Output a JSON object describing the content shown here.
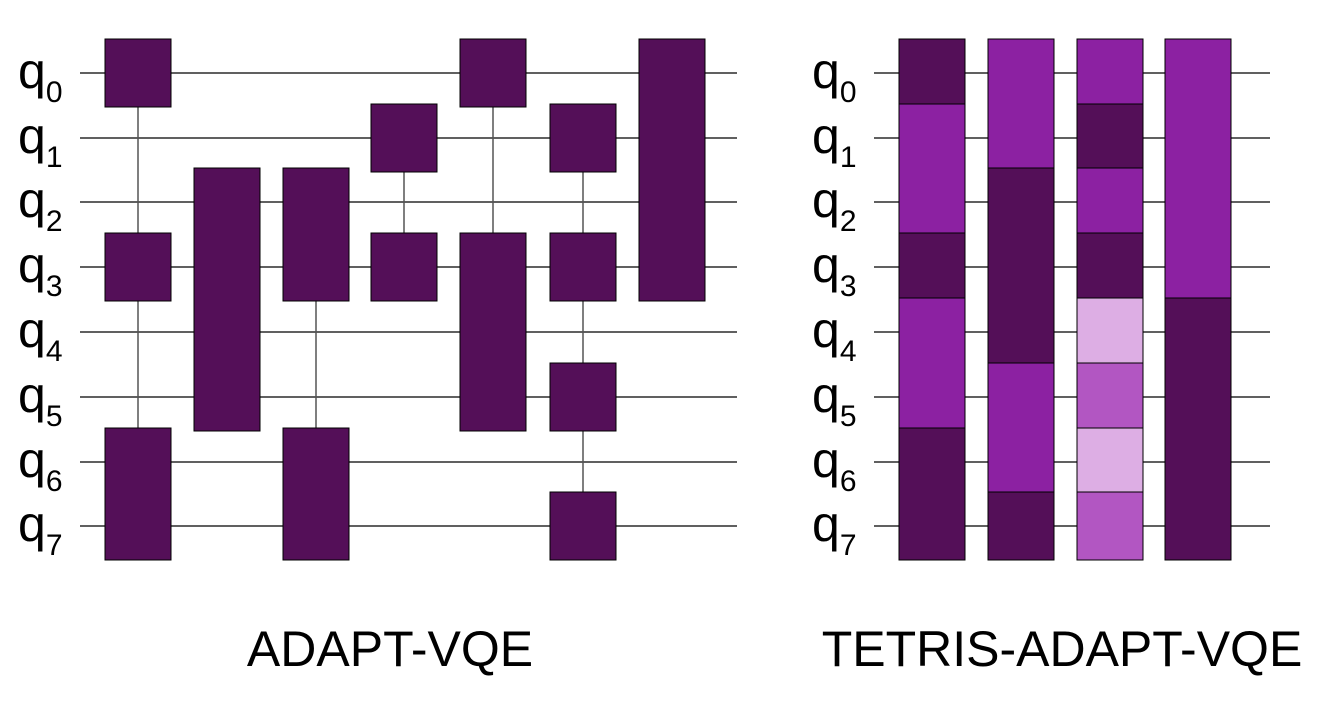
{
  "qubits": [
    {
      "name": "q",
      "index": "0"
    },
    {
      "name": "q",
      "index": "1"
    },
    {
      "name": "q",
      "index": "2"
    },
    {
      "name": "q",
      "index": "3"
    },
    {
      "name": "q",
      "index": "4"
    },
    {
      "name": "q",
      "index": "5"
    },
    {
      "name": "q",
      "index": "6"
    },
    {
      "name": "q",
      "index": "7"
    }
  ],
  "colors": {
    "dark": "#540F58",
    "medium": "#8C21A2",
    "mid_light": "#B256C2",
    "light": "#DDAEE4",
    "wire": "#000000",
    "connector": "#555555"
  },
  "circuits": [
    {
      "title": "ADAPT-VQE",
      "gates": [
        {
          "column": 1,
          "from": 0,
          "to": 0,
          "color": "dark"
        },
        {
          "column": 1,
          "from": 3,
          "to": 3,
          "color": "dark"
        },
        {
          "column": 1,
          "from": 6,
          "to": 7,
          "color": "dark"
        },
        {
          "column": 2,
          "from": 2,
          "to": 5,
          "color": "dark"
        },
        {
          "column": 3,
          "from": 2,
          "to": 3,
          "color": "dark"
        },
        {
          "column": 3,
          "from": 6,
          "to": 7,
          "color": "dark"
        },
        {
          "column": 4,
          "from": 1,
          "to": 1,
          "color": "dark"
        },
        {
          "column": 4,
          "from": 3,
          "to": 3,
          "color": "dark"
        },
        {
          "column": 5,
          "from": 0,
          "to": 0,
          "color": "dark"
        },
        {
          "column": 5,
          "from": 3,
          "to": 5,
          "color": "dark"
        },
        {
          "column": 6,
          "from": 1,
          "to": 1,
          "color": "dark"
        },
        {
          "column": 6,
          "from": 3,
          "to": 3,
          "color": "dark"
        },
        {
          "column": 6,
          "from": 5,
          "to": 5,
          "color": "dark"
        },
        {
          "column": 6,
          "from": 7,
          "to": 7,
          "color": "dark"
        },
        {
          "column": 7,
          "from": 0,
          "to": 3,
          "color": "dark"
        }
      ],
      "connectors": [
        {
          "column": 1,
          "from": 0,
          "to": 6
        },
        {
          "column": 3,
          "from": 3,
          "to": 6
        },
        {
          "column": 4,
          "from": 1,
          "to": 3
        },
        {
          "column": 5,
          "from": 0,
          "to": 3
        },
        {
          "column": 6,
          "from": 1,
          "to": 7
        }
      ]
    },
    {
      "title": "TETRIS-ADAPT-VQE",
      "gates": [
        {
          "column": 1,
          "from": 0,
          "to": 0,
          "color": "dark"
        },
        {
          "column": 1,
          "from": 1,
          "to": 2,
          "color": "medium"
        },
        {
          "column": 1,
          "from": 3,
          "to": 3,
          "color": "dark"
        },
        {
          "column": 1,
          "from": 4,
          "to": 5,
          "color": "medium"
        },
        {
          "column": 1,
          "from": 6,
          "to": 7,
          "color": "dark"
        },
        {
          "column": 2,
          "from": 0,
          "to": 1,
          "color": "medium"
        },
        {
          "column": 2,
          "from": 2,
          "to": 4,
          "color": "dark"
        },
        {
          "column": 2,
          "from": 5,
          "to": 6,
          "color": "medium"
        },
        {
          "column": 2,
          "from": 7,
          "to": 7,
          "color": "dark"
        },
        {
          "column": 3,
          "from": 0,
          "to": 0,
          "color": "medium"
        },
        {
          "column": 3,
          "from": 1,
          "to": 1,
          "color": "dark"
        },
        {
          "column": 3,
          "from": 2,
          "to": 2,
          "color": "medium"
        },
        {
          "column": 3,
          "from": 3,
          "to": 3,
          "color": "dark"
        },
        {
          "column": 3,
          "from": 4,
          "to": 4,
          "color": "light"
        },
        {
          "column": 3,
          "from": 5,
          "to": 5,
          "color": "mid_light"
        },
        {
          "column": 3,
          "from": 6,
          "to": 6,
          "color": "light"
        },
        {
          "column": 3,
          "from": 7,
          "to": 7,
          "color": "mid_light"
        },
        {
          "column": 4,
          "from": 0,
          "to": 3,
          "color": "medium"
        },
        {
          "column": 4,
          "from": 4,
          "to": 7,
          "color": "dark"
        }
      ],
      "connectors": [
        {
          "column": 1,
          "from": 0,
          "to": 7
        },
        {
          "column": 2,
          "from": 0,
          "to": 7
        },
        {
          "column": 3,
          "from": 0,
          "to": 7
        }
      ]
    }
  ]
}
